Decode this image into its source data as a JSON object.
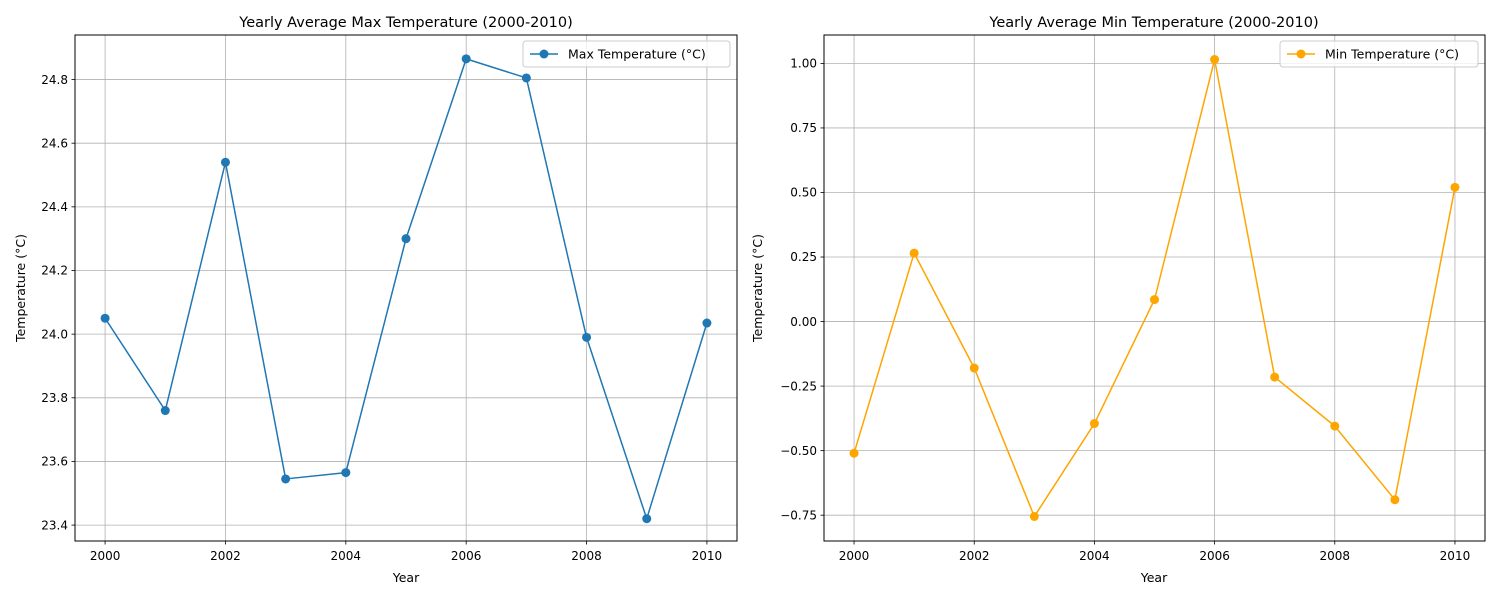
{
  "chart_data": [
    {
      "type": "line",
      "title": "Yearly Average Max Temperature (2000-2010)",
      "xlabel": "Year",
      "ylabel": "Temperature (°C)",
      "x": [
        2000,
        2001,
        2002,
        2003,
        2004,
        2005,
        2006,
        2007,
        2008,
        2009,
        2010
      ],
      "series": [
        {
          "name": "Max Temperature (°C)",
          "color": "#1f77b4",
          "values": [
            24.05,
            23.76,
            24.54,
            23.545,
            23.565,
            24.3,
            24.865,
            24.805,
            23.99,
            23.42,
            24.035
          ]
        }
      ],
      "xlim": [
        1999.5,
        2010.5
      ],
      "ylim": [
        23.35,
        24.94
      ],
      "xticks": [
        2000,
        2002,
        2004,
        2006,
        2008,
        2010
      ],
      "xtick_labels": [
        "2000",
        "2002",
        "2004",
        "2006",
        "2008",
        "2010"
      ],
      "yticks": [
        23.4,
        23.6,
        23.8,
        24.0,
        24.2,
        24.4,
        24.6,
        24.8
      ],
      "ytick_labels": [
        "23.4",
        "23.6",
        "23.8",
        "24.0",
        "24.2",
        "24.4",
        "24.6",
        "24.8"
      ],
      "grid": true,
      "legend": "top-right"
    },
    {
      "type": "line",
      "title": "Yearly Average Min Temperature (2000-2010)",
      "xlabel": "Year",
      "ylabel": "Temperature (°C)",
      "x": [
        2000,
        2001,
        2002,
        2003,
        2004,
        2005,
        2006,
        2007,
        2008,
        2009,
        2010
      ],
      "series": [
        {
          "name": "Min Temperature (°C)",
          "color": "#ffa500",
          "values": [
            -0.51,
            0.265,
            -0.18,
            -0.755,
            -0.395,
            0.085,
            1.015,
            -0.215,
            -0.405,
            -0.69,
            0.52
          ]
        }
      ],
      "xlim": [
        1999.5,
        2010.5
      ],
      "ylim": [
        -0.85,
        1.11
      ],
      "xticks": [
        2000,
        2002,
        2004,
        2006,
        2008,
        2010
      ],
      "xtick_labels": [
        "2000",
        "2002",
        "2004",
        "2006",
        "2008",
        "2010"
      ],
      "yticks": [
        -0.75,
        -0.5,
        -0.25,
        0.0,
        0.25,
        0.5,
        0.75,
        1.0
      ],
      "ytick_labels": [
        "−0.75",
        "−0.50",
        "−0.25",
        "0.00",
        "0.25",
        "0.50",
        "0.75",
        "1.00"
      ],
      "grid": true,
      "legend": "top-right"
    }
  ]
}
